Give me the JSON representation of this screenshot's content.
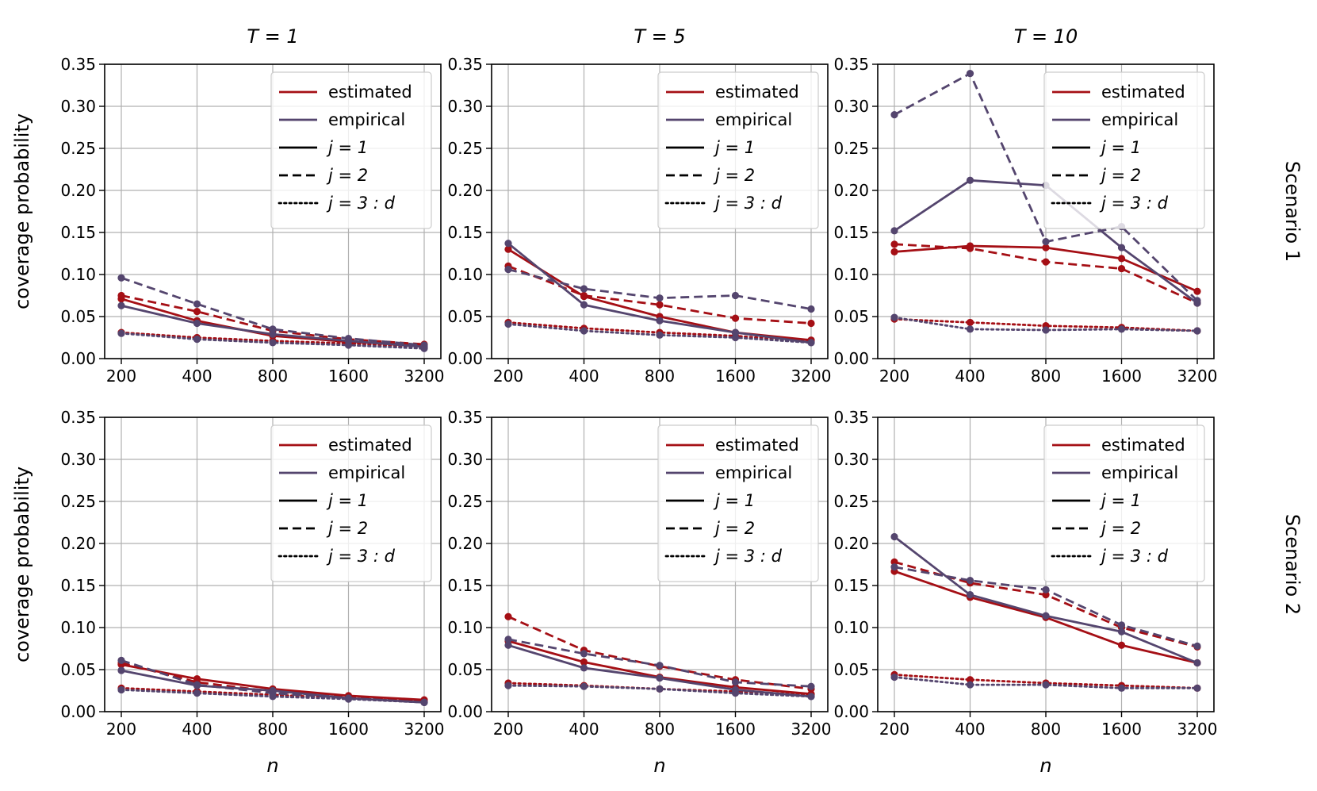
{
  "colors": {
    "estimated": "#a50f15",
    "empirical": "#54456e"
  },
  "figure": {
    "row_labels": [
      "Scenario 1",
      "Scenario 2"
    ],
    "column_titles": [
      "T = 1",
      "T = 5",
      "T = 10"
    ],
    "ylabel": "coverage probability",
    "xlabel": "n"
  },
  "legend": {
    "entries": [
      {
        "label": "estimated",
        "style": "solid",
        "color": "estimated"
      },
      {
        "label": "empirical",
        "style": "solid",
        "color": "empirical"
      },
      {
        "label": "j = 1",
        "style": "solid",
        "color": "black"
      },
      {
        "label": "j = 2",
        "style": "dashed",
        "color": "black"
      },
      {
        "label": "j = 3 : d",
        "style": "dotted",
        "color": "black"
      }
    ],
    "placement": "top-right"
  },
  "chart_data": [
    {
      "type": "line",
      "title": "T = 1",
      "scenario": "Scenario 1",
      "categories": [
        "200",
        "400",
        "800",
        "1600",
        "3200"
      ],
      "ylim": [
        0,
        0.35
      ],
      "yticks": [
        0,
        0.05,
        0.1,
        0.15,
        0.2,
        0.25,
        0.3,
        0.35
      ],
      "ytick_labels": [
        "0.00",
        "0.05",
        "0.10",
        "0.15",
        "0.20",
        "0.25",
        "0.30",
        "0.35"
      ],
      "xlabel": "",
      "ylabel": "coverage probability",
      "grid": true,
      "series": [
        {
          "name": "estimated j = 1",
          "color": "estimated",
          "style": "solid",
          "values": [
            0.071,
            0.045,
            0.027,
            0.02,
            0.016
          ]
        },
        {
          "name": "estimated j = 2",
          "color": "estimated",
          "style": "dashed",
          "values": [
            0.075,
            0.056,
            0.033,
            0.023,
            0.017
          ]
        },
        {
          "name": "estimated j = 3 : d",
          "color": "estimated",
          "style": "dotted",
          "values": [
            0.031,
            0.025,
            0.021,
            0.018,
            0.014
          ]
        },
        {
          "name": "empirical j = 1",
          "color": "empirical",
          "style": "solid",
          "values": [
            0.063,
            0.042,
            0.029,
            0.021,
            0.014
          ]
        },
        {
          "name": "empirical j = 2",
          "color": "empirical",
          "style": "dashed",
          "values": [
            0.096,
            0.065,
            0.035,
            0.024,
            0.016
          ]
        },
        {
          "name": "empirical j = 3 : d",
          "color": "empirical",
          "style": "dotted",
          "values": [
            0.03,
            0.023,
            0.019,
            0.016,
            0.012
          ]
        }
      ]
    },
    {
      "type": "line",
      "title": "T = 5",
      "scenario": "Scenario 1",
      "categories": [
        "200",
        "400",
        "800",
        "1600",
        "3200"
      ],
      "ylim": [
        0,
        0.35
      ],
      "yticks": [
        0,
        0.05,
        0.1,
        0.15,
        0.2,
        0.25,
        0.3,
        0.35
      ],
      "ytick_labels": [
        "0.00",
        "0.05",
        "0.10",
        "0.15",
        "0.20",
        "0.25",
        "0.30",
        "0.35"
      ],
      "xlabel": "",
      "ylabel": "",
      "grid": true,
      "series": [
        {
          "name": "estimated j = 1",
          "color": "estimated",
          "style": "solid",
          "values": [
            0.13,
            0.074,
            0.05,
            0.031,
            0.022
          ]
        },
        {
          "name": "estimated j = 2",
          "color": "estimated",
          "style": "dashed",
          "values": [
            0.11,
            0.075,
            0.064,
            0.048,
            0.042
          ]
        },
        {
          "name": "estimated j = 3 : d",
          "color": "estimated",
          "style": "dotted",
          "values": [
            0.043,
            0.036,
            0.031,
            0.027,
            0.02
          ]
        },
        {
          "name": "empirical j = 1",
          "color": "empirical",
          "style": "solid",
          "values": [
            0.137,
            0.064,
            0.045,
            0.031,
            0.019
          ]
        },
        {
          "name": "empirical j = 2",
          "color": "empirical",
          "style": "dashed",
          "values": [
            0.106,
            0.083,
            0.072,
            0.075,
            0.059
          ]
        },
        {
          "name": "empirical j = 3 : d",
          "color": "empirical",
          "style": "dotted",
          "values": [
            0.041,
            0.033,
            0.028,
            0.025,
            0.019
          ]
        }
      ]
    },
    {
      "type": "line",
      "title": "T = 10",
      "scenario": "Scenario 1",
      "categories": [
        "200",
        "400",
        "800",
        "1600",
        "3200"
      ],
      "ylim": [
        0,
        0.35
      ],
      "yticks": [
        0,
        0.05,
        0.1,
        0.15,
        0.2,
        0.25,
        0.3,
        0.35
      ],
      "ytick_labels": [
        "0.00",
        "0.05",
        "0.10",
        "0.15",
        "0.20",
        "0.25",
        "0.30",
        "0.35"
      ],
      "xlabel": "",
      "ylabel": "",
      "grid": true,
      "series": [
        {
          "name": "estimated j = 1",
          "color": "estimated",
          "style": "solid",
          "values": [
            0.127,
            0.134,
            0.132,
            0.119,
            0.08
          ]
        },
        {
          "name": "estimated j = 2",
          "color": "estimated",
          "style": "dashed",
          "values": [
            0.136,
            0.131,
            0.115,
            0.107,
            0.066
          ]
        },
        {
          "name": "estimated j = 3 : d",
          "color": "estimated",
          "style": "dotted",
          "values": [
            0.047,
            0.043,
            0.039,
            0.037,
            0.033
          ]
        },
        {
          "name": "empirical j = 1",
          "color": "empirical",
          "style": "solid",
          "values": [
            0.152,
            0.212,
            0.206,
            0.132,
            0.066
          ]
        },
        {
          "name": "empirical j = 2",
          "color": "empirical",
          "style": "dashed",
          "values": [
            0.29,
            0.339,
            0.139,
            0.157,
            0.069
          ]
        },
        {
          "name": "empirical j = 3 : d",
          "color": "empirical",
          "style": "dotted",
          "values": [
            0.049,
            0.035,
            0.034,
            0.035,
            0.033
          ]
        }
      ]
    },
    {
      "type": "line",
      "title": "",
      "scenario": "Scenario 2",
      "categories": [
        "200",
        "400",
        "800",
        "1600",
        "3200"
      ],
      "ylim": [
        0,
        0.35
      ],
      "yticks": [
        0,
        0.05,
        0.1,
        0.15,
        0.2,
        0.25,
        0.3,
        0.35
      ],
      "ytick_labels": [
        "0.00",
        "0.05",
        "0.10",
        "0.15",
        "0.20",
        "0.25",
        "0.30",
        "0.35"
      ],
      "xlabel": "n",
      "ylabel": "coverage probability",
      "grid": true,
      "series": [
        {
          "name": "estimated j = 1",
          "color": "estimated",
          "style": "solid",
          "values": [
            0.056,
            0.039,
            0.027,
            0.019,
            0.014
          ]
        },
        {
          "name": "estimated j = 2",
          "color": "estimated",
          "style": "dashed",
          "values": [
            0.058,
            0.035,
            0.024,
            0.017,
            0.012
          ]
        },
        {
          "name": "estimated j = 3 : d",
          "color": "estimated",
          "style": "dotted",
          "values": [
            0.028,
            0.024,
            0.02,
            0.016,
            0.012
          ]
        },
        {
          "name": "empirical j = 1",
          "color": "empirical",
          "style": "solid",
          "values": [
            0.049,
            0.031,
            0.025,
            0.016,
            0.011
          ]
        },
        {
          "name": "empirical j = 2",
          "color": "empirical",
          "style": "dashed",
          "values": [
            0.061,
            0.032,
            0.022,
            0.016,
            0.011
          ]
        },
        {
          "name": "empirical j = 3 : d",
          "color": "empirical",
          "style": "dotted",
          "values": [
            0.026,
            0.022,
            0.018,
            0.015,
            0.011
          ]
        }
      ]
    },
    {
      "type": "line",
      "title": "",
      "scenario": "Scenario 2",
      "categories": [
        "200",
        "400",
        "800",
        "1600",
        "3200"
      ],
      "ylim": [
        0,
        0.35
      ],
      "yticks": [
        0,
        0.05,
        0.1,
        0.15,
        0.2,
        0.25,
        0.3,
        0.35
      ],
      "ytick_labels": [
        "0.00",
        "0.05",
        "0.10",
        "0.15",
        "0.20",
        "0.25",
        "0.30",
        "0.35"
      ],
      "xlabel": "n",
      "ylabel": "",
      "grid": true,
      "series": [
        {
          "name": "estimated j = 1",
          "color": "estimated",
          "style": "solid",
          "values": [
            0.084,
            0.059,
            0.041,
            0.029,
            0.021
          ]
        },
        {
          "name": "estimated j = 2",
          "color": "estimated",
          "style": "dashed",
          "values": [
            0.113,
            0.073,
            0.054,
            0.038,
            0.027
          ]
        },
        {
          "name": "estimated j = 3 : d",
          "color": "estimated",
          "style": "dotted",
          "values": [
            0.034,
            0.031,
            0.027,
            0.024,
            0.02
          ]
        },
        {
          "name": "empirical j = 1",
          "color": "empirical",
          "style": "solid",
          "values": [
            0.079,
            0.052,
            0.04,
            0.026,
            0.018
          ]
        },
        {
          "name": "empirical j = 2",
          "color": "empirical",
          "style": "dashed",
          "values": [
            0.086,
            0.069,
            0.055,
            0.035,
            0.03
          ]
        },
        {
          "name": "empirical j = 3 : d",
          "color": "empirical",
          "style": "dotted",
          "values": [
            0.031,
            0.03,
            0.027,
            0.022,
            0.018
          ]
        }
      ]
    },
    {
      "type": "line",
      "title": "",
      "scenario": "Scenario 2",
      "categories": [
        "200",
        "400",
        "800",
        "1600",
        "3200"
      ],
      "ylim": [
        0,
        0.35
      ],
      "yticks": [
        0,
        0.05,
        0.1,
        0.15,
        0.2,
        0.25,
        0.3,
        0.35
      ],
      "ytick_labels": [
        "0.00",
        "0.05",
        "0.10",
        "0.15",
        "0.20",
        "0.25",
        "0.30",
        "0.35"
      ],
      "xlabel": "n",
      "ylabel": "",
      "grid": true,
      "series": [
        {
          "name": "estimated j = 1",
          "color": "estimated",
          "style": "solid",
          "values": [
            0.167,
            0.136,
            0.112,
            0.079,
            0.058
          ]
        },
        {
          "name": "estimated j = 2",
          "color": "estimated",
          "style": "dashed",
          "values": [
            0.178,
            0.153,
            0.139,
            0.1,
            0.077
          ]
        },
        {
          "name": "estimated j = 3 : d",
          "color": "estimated",
          "style": "dotted",
          "values": [
            0.044,
            0.038,
            0.034,
            0.031,
            0.028
          ]
        },
        {
          "name": "empirical j = 1",
          "color": "empirical",
          "style": "solid",
          "values": [
            0.208,
            0.139,
            0.114,
            0.095,
            0.058
          ]
        },
        {
          "name": "empirical j = 2",
          "color": "empirical",
          "style": "dashed",
          "values": [
            0.172,
            0.156,
            0.145,
            0.103,
            0.078
          ]
        },
        {
          "name": "empirical j = 3 : d",
          "color": "empirical",
          "style": "dotted",
          "values": [
            0.041,
            0.032,
            0.032,
            0.028,
            0.028
          ]
        }
      ]
    }
  ]
}
